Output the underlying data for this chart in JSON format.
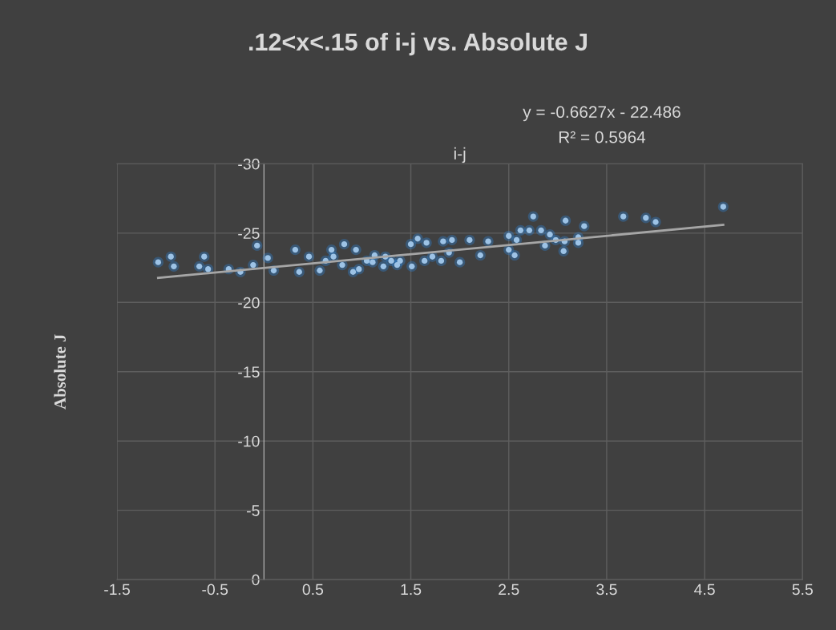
{
  "chart_data": {
    "type": "scatter",
    "title": ".12<x<.15 of i-j vs. Absolute J",
    "xlabel": "i-j",
    "ylabel": "Absolute J",
    "annotations": [
      "y = -0.6627x - 22.486",
      "R² = 0.5964"
    ],
    "xlim": [
      -1.5,
      5.5
    ],
    "xticks": [
      -1.5,
      -0.5,
      0.5,
      1.5,
      2.5,
      3.5,
      4.5,
      5.5
    ],
    "ylim": [
      0,
      -30
    ],
    "yticks": [
      0,
      -5,
      -10,
      -15,
      -20,
      -25,
      -30
    ],
    "grid": true,
    "series": [
      {
        "marker": "circle",
        "color": "#9dc3e6",
        "x": [
          -1.08,
          -0.95,
          -0.92,
          -0.61,
          -0.66,
          -0.57,
          -0.36,
          -0.07,
          -0.24,
          -0.11,
          0.04,
          0.1,
          0.32,
          0.36,
          0.46,
          0.57,
          0.69,
          0.82,
          0.94,
          0.91,
          1.11,
          1.24,
          1.36,
          1.51,
          1.57,
          1.66,
          1.83,
          1.92,
          2.0,
          1.5,
          2.1,
          2.29,
          2.21,
          2.5,
          2.58,
          2.5,
          2.56,
          2.62,
          2.71,
          2.75,
          2.83,
          2.92,
          2.87,
          2.98,
          3.07,
          3.08,
          3.06,
          3.21,
          3.21,
          3.27,
          3.67,
          3.9,
          4.0,
          4.69,
          0.63,
          0.8,
          1.05,
          1.22,
          1.39,
          1.72,
          1.89,
          0.71,
          0.97,
          1.13,
          1.3,
          1.64,
          1.81
        ],
        "values": [
          -22.9,
          -23.3,
          -22.6,
          -23.3,
          -22.6,
          -22.4,
          -22.4,
          -24.1,
          -22.2,
          -22.7,
          -23.2,
          -22.3,
          -23.8,
          -22.2,
          -23.3,
          -22.3,
          -23.8,
          -24.2,
          -23.8,
          -22.2,
          -22.9,
          -23.3,
          -22.7,
          -22.6,
          -24.6,
          -24.3,
          -24.4,
          -24.5,
          -22.9,
          -24.2,
          -24.5,
          -24.4,
          -23.4,
          -24.8,
          -24.5,
          -23.8,
          -23.4,
          -25.2,
          -25.2,
          -26.2,
          -25.2,
          -24.9,
          -24.1,
          -24.5,
          -24.4,
          -25.9,
          -23.7,
          -24.7,
          -24.3,
          -25.5,
          -26.2,
          -26.1,
          -25.8,
          -26.9,
          -23.0,
          -22.7,
          -23.0,
          -22.6,
          -23.0,
          -23.3,
          -23.6,
          -23.3,
          -22.4,
          -23.4,
          -23.0,
          -23.0,
          -23.0
        ]
      },
      {
        "type": "line",
        "color": "#a6a6a6",
        "x": [
          -1.08,
          4.69
        ],
        "values": [
          -21.77,
          -25.59
        ]
      }
    ]
  }
}
